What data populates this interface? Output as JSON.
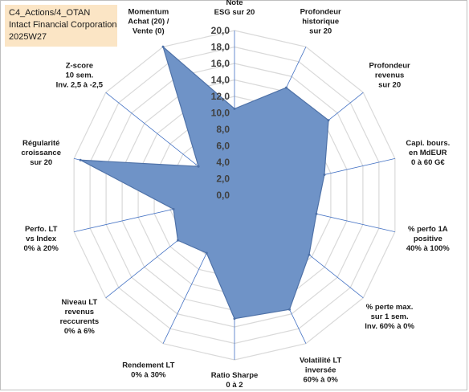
{
  "header": {
    "line1": "C4_Actions/4_OTAN",
    "line2": "Intact Financial Corporation",
    "line3": "2025W27"
  },
  "colors": {
    "fill": "#6f93c7",
    "stroke": "#4f72a8",
    "grid": "#d9d9d9",
    "spoke": "#4472c4",
    "title_bg": "#fbe5c5"
  },
  "chart_data": {
    "type": "radar",
    "rmin": 0,
    "rmax": 20,
    "tick_step": 2,
    "tick_labels": [
      "0,0",
      "2,0",
      "4,0",
      "6,0",
      "8,0",
      "10,0",
      "12,0",
      "14,0",
      "16,0",
      "18,0",
      "20,0"
    ],
    "axes": [
      [
        "Note",
        "ESG sur 20"
      ],
      [
        "Profondeur",
        "historique",
        "sur 20"
      ],
      [
        "Profondeur",
        "revenus",
        "sur 20"
      ],
      [
        "Capi. bours.",
        "en MdEUR",
        "0 à 60 G€"
      ],
      [
        "% perfo 1A",
        "positive",
        "40% à 100%"
      ],
      [
        "% perte max.",
        "sur 1 sem.",
        "Inv. 60% à 0%"
      ],
      [
        "Volatilité LT",
        "inversée",
        "60% à 0%"
      ],
      [
        "Ratio Sharpe",
        "0 à 2"
      ],
      [
        "Rendement LT",
        "0% à 30%"
      ],
      [
        "Niveau LT",
        "revenus",
        "reccurents",
        "0% à 6%"
      ],
      [
        "Perfo. LT",
        "vs Index",
        "0% à 20%"
      ],
      [
        "Régularité",
        "croissance",
        "sur 20"
      ],
      [
        "Z-score",
        "10 sem.",
        "Inv. 2,5 à -2,5"
      ],
      [
        "Momentum",
        "Achat (20) /",
        "Vente (0)"
      ]
    ],
    "values": [
      10.5,
      14.5,
      14.6,
      11.2,
      10.2,
      11.6,
      15.4,
      15.0,
      7.8,
      8.8,
      7.6,
      19.2,
      5.6,
      20.0
    ]
  }
}
